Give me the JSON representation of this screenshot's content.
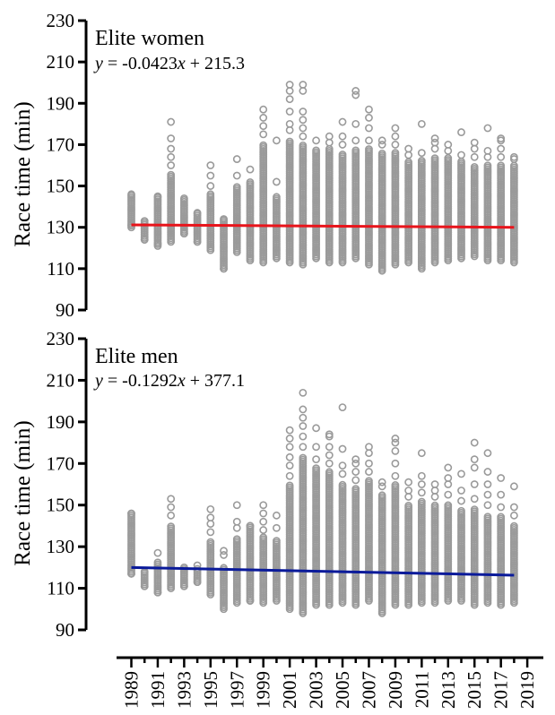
{
  "chart_data": [
    {
      "type": "scatter",
      "panel_title": "Elite women",
      "equation": {
        "y": "y",
        "mid": " = -0.0423",
        "x": "x",
        "tail": " + 215.3"
      },
      "ylabel": "Race time (min)",
      "yticks": [
        90,
        110,
        130,
        150,
        170,
        190,
        210,
        230
      ],
      "ylim": [
        90,
        230
      ],
      "xlim": [
        1988,
        2019
      ],
      "point_color": "#9a9a9a",
      "trend_color": "#e8141b",
      "trend": {
        "x": [
          1989,
          2018
        ],
        "y": [
          131.2,
          130.0
        ]
      },
      "series": [
        {
          "year": 1989,
          "min": 130,
          "max": 146,
          "outliers": [
            131,
            146
          ]
        },
        {
          "year": 1990,
          "min": 124,
          "max": 133,
          "outliers": [
            124,
            133
          ]
        },
        {
          "year": 1991,
          "min": 121,
          "max": 145,
          "outliers": [
            122,
            145
          ]
        },
        {
          "year": 1992,
          "min": 123,
          "max": 156,
          "outliers": [
            160,
            164,
            168,
            173,
            181
          ]
        },
        {
          "year": 1993,
          "min": 127,
          "max": 144,
          "outliers": [
            127,
            144
          ]
        },
        {
          "year": 1994,
          "min": 123,
          "max": 137,
          "outliers": [
            123,
            137
          ]
        },
        {
          "year": 1995,
          "min": 119,
          "max": 146,
          "outliers": [
            150,
            155,
            160
          ]
        },
        {
          "year": 1996,
          "min": 110,
          "max": 134,
          "outliers": [
            110,
            134
          ]
        },
        {
          "year": 1997,
          "min": 118,
          "max": 150,
          "outliers": [
            155,
            163
          ]
        },
        {
          "year": 1998,
          "min": 114,
          "max": 152,
          "outliers": [
            158
          ]
        },
        {
          "year": 1999,
          "min": 113,
          "max": 170,
          "outliers": [
            175,
            179,
            183,
            187
          ]
        },
        {
          "year": 2000,
          "min": 115,
          "max": 145,
          "outliers": [
            152,
            172
          ]
        },
        {
          "year": 2001,
          "min": 113,
          "max": 172,
          "outliers": [
            177,
            180,
            186,
            192,
            196,
            199
          ]
        },
        {
          "year": 2002,
          "min": 112,
          "max": 170,
          "outliers": [
            174,
            178,
            182,
            186,
            196,
            199
          ]
        },
        {
          "year": 2003,
          "min": 115,
          "max": 168,
          "outliers": [
            172
          ]
        },
        {
          "year": 2004,
          "min": 113,
          "max": 168,
          "outliers": [
            171,
            174
          ]
        },
        {
          "year": 2005,
          "min": 113,
          "max": 166,
          "outliers": [
            170,
            174,
            181
          ]
        },
        {
          "year": 2006,
          "min": 115,
          "max": 168,
          "outliers": [
            172,
            180,
            194,
            196
          ]
        },
        {
          "year": 2007,
          "min": 112,
          "max": 168,
          "outliers": [
            172,
            178,
            183,
            187
          ]
        },
        {
          "year": 2008,
          "min": 109,
          "max": 166,
          "outliers": [
            170,
            172
          ]
        },
        {
          "year": 2009,
          "min": 112,
          "max": 166,
          "outliers": [
            170,
            174,
            178
          ]
        },
        {
          "year": 2010,
          "min": 113,
          "max": 162,
          "outliers": [
            165,
            168
          ]
        },
        {
          "year": 2011,
          "min": 110,
          "max": 163,
          "outliers": [
            166,
            180
          ]
        },
        {
          "year": 2012,
          "min": 113,
          "max": 164,
          "outliers": [
            168,
            171,
            173
          ]
        },
        {
          "year": 2013,
          "min": 114,
          "max": 164,
          "outliers": [
            167,
            170
          ]
        },
        {
          "year": 2014,
          "min": 115,
          "max": 162,
          "outliers": [
            165,
            176
          ]
        },
        {
          "year": 2015,
          "min": 116,
          "max": 160,
          "outliers": [
            164,
            168,
            171
          ]
        },
        {
          "year": 2016,
          "min": 114,
          "max": 160,
          "outliers": [
            164,
            167,
            178
          ]
        },
        {
          "year": 2017,
          "min": 114,
          "max": 160,
          "outliers": [
            164,
            168,
            172,
            173
          ]
        },
        {
          "year": 2018,
          "min": 113,
          "max": 160,
          "outliers": [
            163,
            164
          ]
        }
      ]
    },
    {
      "type": "scatter",
      "panel_title": "Elite men",
      "equation": {
        "y": "y",
        "mid": " = -0.1292",
        "x": "x",
        "tail": " + 377.1"
      },
      "ylabel": "Race time (min)",
      "yticks": [
        90,
        110,
        130,
        150,
        170,
        190,
        210,
        230
      ],
      "ylim": [
        90,
        230
      ],
      "xlim": [
        1988,
        2019
      ],
      "point_color": "#9a9a9a",
      "trend_color": "#0a1a9a",
      "trend": {
        "x": [
          1989,
          2018
        ],
        "y": [
          120.0,
          116.3
        ]
      },
      "series": [
        {
          "year": 1989,
          "min": 117,
          "max": 146,
          "outliers": [
            117,
            146
          ]
        },
        {
          "year": 1990,
          "min": 111,
          "max": 118,
          "outliers": [
            111,
            118
          ]
        },
        {
          "year": 1991,
          "min": 108,
          "max": 123,
          "outliers": [
            108,
            127
          ]
        },
        {
          "year": 1992,
          "min": 110,
          "max": 140,
          "outliers": [
            145,
            149,
            153
          ]
        },
        {
          "year": 1993,
          "min": 111,
          "max": 120,
          "outliers": [
            111,
            120
          ]
        },
        {
          "year": 1994,
          "min": 113,
          "max": 120,
          "outliers": [
            113,
            121
          ]
        },
        {
          "year": 1995,
          "min": 107,
          "max": 133,
          "outliers": [
            137,
            141,
            144,
            148
          ]
        },
        {
          "year": 1996,
          "min": 100,
          "max": 120,
          "outliers": [
            126,
            128
          ]
        },
        {
          "year": 1997,
          "min": 103,
          "max": 134,
          "outliers": [
            139,
            142,
            150
          ]
        },
        {
          "year": 1998,
          "min": 104,
          "max": 140,
          "outliers": [
            104,
            140
          ]
        },
        {
          "year": 1999,
          "min": 103,
          "max": 135,
          "outliers": [
            138,
            142,
            146,
            150
          ]
        },
        {
          "year": 2000,
          "min": 104,
          "max": 133,
          "outliers": [
            139,
            145
          ]
        },
        {
          "year": 2001,
          "min": 100,
          "max": 160,
          "outliers": [
            164,
            169,
            173,
            178,
            182,
            186
          ]
        },
        {
          "year": 2002,
          "min": 98,
          "max": 173,
          "outliers": [
            178,
            183,
            188,
            192,
            196,
            204
          ]
        },
        {
          "year": 2003,
          "min": 102,
          "max": 168,
          "outliers": [
            172,
            178,
            187
          ]
        },
        {
          "year": 2004,
          "min": 102,
          "max": 166,
          "outliers": [
            170,
            174,
            178,
            183,
            184
          ]
        },
        {
          "year": 2005,
          "min": 103,
          "max": 160,
          "outliers": [
            165,
            169,
            177,
            197
          ]
        },
        {
          "year": 2006,
          "min": 102,
          "max": 158,
          "outliers": [
            162,
            166,
            170,
            172
          ]
        },
        {
          "year": 2007,
          "min": 104,
          "max": 162,
          "outliers": [
            166,
            170,
            175,
            178
          ]
        },
        {
          "year": 2008,
          "min": 98,
          "max": 155,
          "outliers": [
            159,
            161
          ]
        },
        {
          "year": 2009,
          "min": 102,
          "max": 160,
          "outliers": [
            164,
            170,
            176,
            180,
            182
          ]
        },
        {
          "year": 2010,
          "min": 102,
          "max": 150,
          "outliers": [
            154,
            157,
            161
          ]
        },
        {
          "year": 2011,
          "min": 103,
          "max": 152,
          "outliers": [
            156,
            160,
            164,
            175
          ]
        },
        {
          "year": 2012,
          "min": 103,
          "max": 150,
          "outliers": [
            154,
            157,
            160
          ]
        },
        {
          "year": 2013,
          "min": 104,
          "max": 150,
          "outliers": [
            155,
            160,
            163,
            168
          ]
        },
        {
          "year": 2014,
          "min": 104,
          "max": 148,
          "outliers": [
            152,
            157,
            165
          ]
        },
        {
          "year": 2015,
          "min": 102,
          "max": 148,
          "outliers": [
            153,
            160,
            168,
            172,
            180
          ]
        },
        {
          "year": 2016,
          "min": 103,
          "max": 145,
          "outliers": [
            150,
            155,
            160,
            166,
            175
          ]
        },
        {
          "year": 2017,
          "min": 102,
          "max": 145,
          "outliers": [
            149,
            155,
            163
          ]
        },
        {
          "year": 2018,
          "min": 103,
          "max": 140,
          "outliers": [
            145,
            149,
            159
          ]
        }
      ]
    }
  ],
  "xticks": [
    "1989",
    "1991",
    "1993",
    "1995",
    "1997",
    "1999",
    "2001",
    "2003",
    "2005",
    "2007",
    "2009",
    "2011",
    "2013",
    "2015",
    "2017",
    "2019"
  ]
}
